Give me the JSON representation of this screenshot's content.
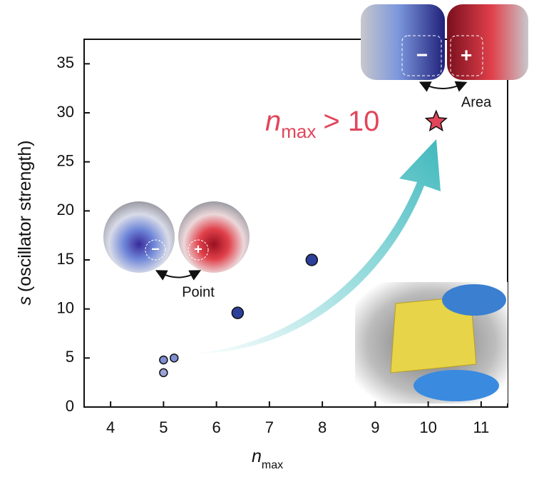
{
  "chart_data": {
    "type": "scatter",
    "x": [
      5.0,
      5.2,
      5.0,
      6.4,
      7.8,
      10.15
    ],
    "y": [
      4.8,
      5.0,
      3.5,
      9.6,
      15.0,
      29.1
    ],
    "marker_colors": [
      "#7f8dd2",
      "#7f8dd2",
      "#9aa2d6",
      "#2c3f9a",
      "#2c3f9a",
      "#e2455a"
    ],
    "markers": [
      "circle",
      "circle",
      "circle",
      "circle",
      "circle",
      "star"
    ],
    "xlim": [
      3.5,
      11.5
    ],
    "xticks": [
      4,
      5,
      6,
      7,
      8,
      9,
      10,
      11
    ],
    "ylim": [
      0,
      37.5
    ],
    "yticks": [
      0,
      5,
      10,
      15,
      20,
      25,
      30,
      35
    ],
    "xlabel": {
      "main": "n",
      "sub": "max"
    },
    "ylabel": {
      "main": "s",
      "rest": "(oscillator strength)"
    },
    "annotation": {
      "main": "n",
      "sub": "max",
      "rest": "> 10"
    },
    "insets": {
      "point_label": "Point",
      "area_label": "Area",
      "minus": "−",
      "plus": "+"
    }
  }
}
